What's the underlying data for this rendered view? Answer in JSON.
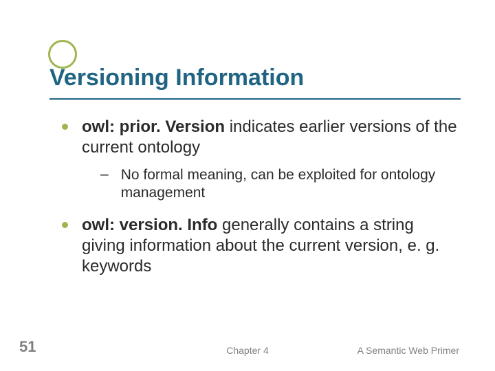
{
  "colors": {
    "accent": "#9fb64f",
    "title": "#1f6482",
    "body_text": "#2a2a2a",
    "footer_text": "#808080",
    "underline": "#1f6482",
    "bullet": "#9fb64f",
    "background": "#ffffff"
  },
  "typography": {
    "title_fontsize": 34,
    "body_fontsize": 24,
    "sub_fontsize": 21,
    "footer_fontsize": 14,
    "pagenum_fontsize": 22
  },
  "title": "Versioning Information",
  "bullets": [
    {
      "bold": "owl: prior. Version",
      "rest": " indicates earlier versions of the current ontology",
      "sub": [
        "No formal meaning, can be exploited for ontology management"
      ]
    },
    {
      "bold": "owl: version. Info",
      "rest": " generally contains a string giving information about the current version, e. g. keywords",
      "sub": []
    }
  ],
  "footer": {
    "page": "51",
    "center": "Chapter 4",
    "right": "A Semantic Web Primer"
  }
}
